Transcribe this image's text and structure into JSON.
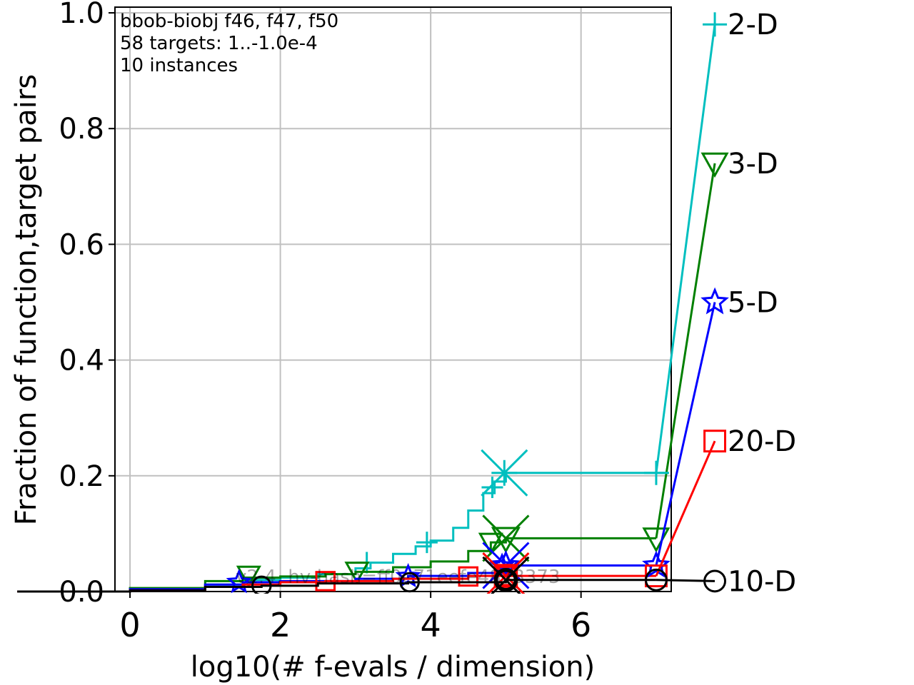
{
  "chart_data": {
    "type": "line",
    "xlabel": "log10(# f-evals / dimension)",
    "ylabel": "Fraction of function,target pairs",
    "xlim": [
      -0.2,
      7.2
    ],
    "ylim": [
      0,
      1.0
    ],
    "grid": true,
    "xticks": [
      0,
      2,
      4,
      6
    ],
    "yticks": [
      0.0,
      0.2,
      0.4,
      0.6,
      0.8,
      1.0
    ],
    "xtick_labels": [
      "0",
      "2",
      "4",
      "6"
    ],
    "ytick_labels": [
      "0.0",
      "0.2",
      "0.4",
      "0.6",
      "0.8",
      "1.0"
    ],
    "annotations": [
      "bbob-biobj f46, f47, f50",
      "58 targets: 1..-1.0e-4",
      "10 instances"
    ],
    "watermark": "v2.4, hv-hash=ff0e71eefe4873373",
    "series": [
      {
        "name": "2-D",
        "color": "#00bfbf",
        "marker": "plus",
        "points": [
          [
            -1.5,
            0.0
          ],
          [
            0.0,
            0.004
          ],
          [
            1.0,
            0.012
          ],
          [
            1.5,
            0.02
          ],
          [
            2.0,
            0.024
          ],
          [
            2.5,
            0.03
          ],
          [
            3.0,
            0.04
          ],
          [
            3.2,
            0.05
          ],
          [
            3.5,
            0.065
          ],
          [
            3.8,
            0.078
          ],
          [
            4.0,
            0.088
          ],
          [
            4.3,
            0.11
          ],
          [
            4.5,
            0.14
          ],
          [
            4.7,
            0.17
          ],
          [
            4.85,
            0.19
          ],
          [
            5.0,
            0.205
          ],
          [
            7.0,
            0.205
          ]
        ],
        "marker_points": [
          [
            3.15,
            0.05
          ],
          [
            3.95,
            0.085
          ],
          [
            4.82,
            0.18
          ]
        ],
        "end_marker": [
          4.98,
          0.205
        ],
        "final": [
          7.78,
          0.98
        ]
      },
      {
        "name": "3-D",
        "color": "#008000",
        "marker": "triangle-down",
        "points": [
          [
            -1.5,
            0.0
          ],
          [
            0.0,
            0.006
          ],
          [
            1.0,
            0.018
          ],
          [
            1.5,
            0.024
          ],
          [
            2.0,
            0.026
          ],
          [
            2.6,
            0.03
          ],
          [
            3.0,
            0.034
          ],
          [
            3.5,
            0.042
          ],
          [
            4.0,
            0.052
          ],
          [
            4.5,
            0.07
          ],
          [
            4.8,
            0.085
          ],
          [
            5.0,
            0.092
          ],
          [
            7.0,
            0.092
          ]
        ],
        "marker_points": [
          [
            1.58,
            0.028
          ],
          [
            3.02,
            0.035
          ],
          [
            4.8,
            0.085
          ]
        ],
        "end_marker": [
          5.0,
          0.092
        ],
        "final": [
          7.78,
          0.74
        ]
      },
      {
        "name": "5-D",
        "color": "#0000ff",
        "marker": "star",
        "points": [
          [
            -1.5,
            0.0
          ],
          [
            0.0,
            0.004
          ],
          [
            1.0,
            0.012
          ],
          [
            1.5,
            0.016
          ],
          [
            2.0,
            0.018
          ],
          [
            3.0,
            0.022
          ],
          [
            3.7,
            0.027
          ],
          [
            4.5,
            0.032
          ],
          [
            4.9,
            0.042
          ],
          [
            5.0,
            0.045
          ],
          [
            7.0,
            0.045
          ]
        ],
        "marker_points": [
          [
            1.45,
            0.016
          ],
          [
            3.7,
            0.026
          ],
          [
            4.95,
            0.044
          ]
        ],
        "end_marker": [
          5.0,
          0.045
        ],
        "final": [
          7.78,
          0.5
        ]
      },
      {
        "name": "20-D",
        "color": "#ff0000",
        "marker": "square",
        "points": [
          [
            -1.5,
            0.0
          ],
          [
            0.0,
            0.002
          ],
          [
            1.0,
            0.008
          ],
          [
            1.5,
            0.012
          ],
          [
            2.0,
            0.016
          ],
          [
            2.6,
            0.018
          ],
          [
            3.5,
            0.022
          ],
          [
            4.5,
            0.027
          ],
          [
            5.0,
            0.027
          ],
          [
            7.0,
            0.027
          ]
        ],
        "marker_points": [
          [
            2.6,
            0.018
          ],
          [
            4.5,
            0.026
          ],
          [
            5.0,
            0.027
          ]
        ],
        "end_marker": [
          5.0,
          0.027
        ],
        "final": [
          7.78,
          0.26
        ]
      },
      {
        "name": "10-D",
        "color": "#000000",
        "marker": "circle",
        "points": [
          [
            -1.5,
            0.0
          ],
          [
            0.0,
            0.002
          ],
          [
            1.0,
            0.008
          ],
          [
            1.75,
            0.01
          ],
          [
            2.5,
            0.014
          ],
          [
            3.7,
            0.016
          ],
          [
            5.0,
            0.02
          ],
          [
            7.0,
            0.02
          ]
        ],
        "marker_points": [
          [
            1.75,
            0.01
          ],
          [
            3.72,
            0.016
          ],
          [
            5.0,
            0.02
          ]
        ],
        "end_marker": [
          5.0,
          0.02
        ],
        "final": [
          7.78,
          0.018
        ]
      }
    ]
  }
}
